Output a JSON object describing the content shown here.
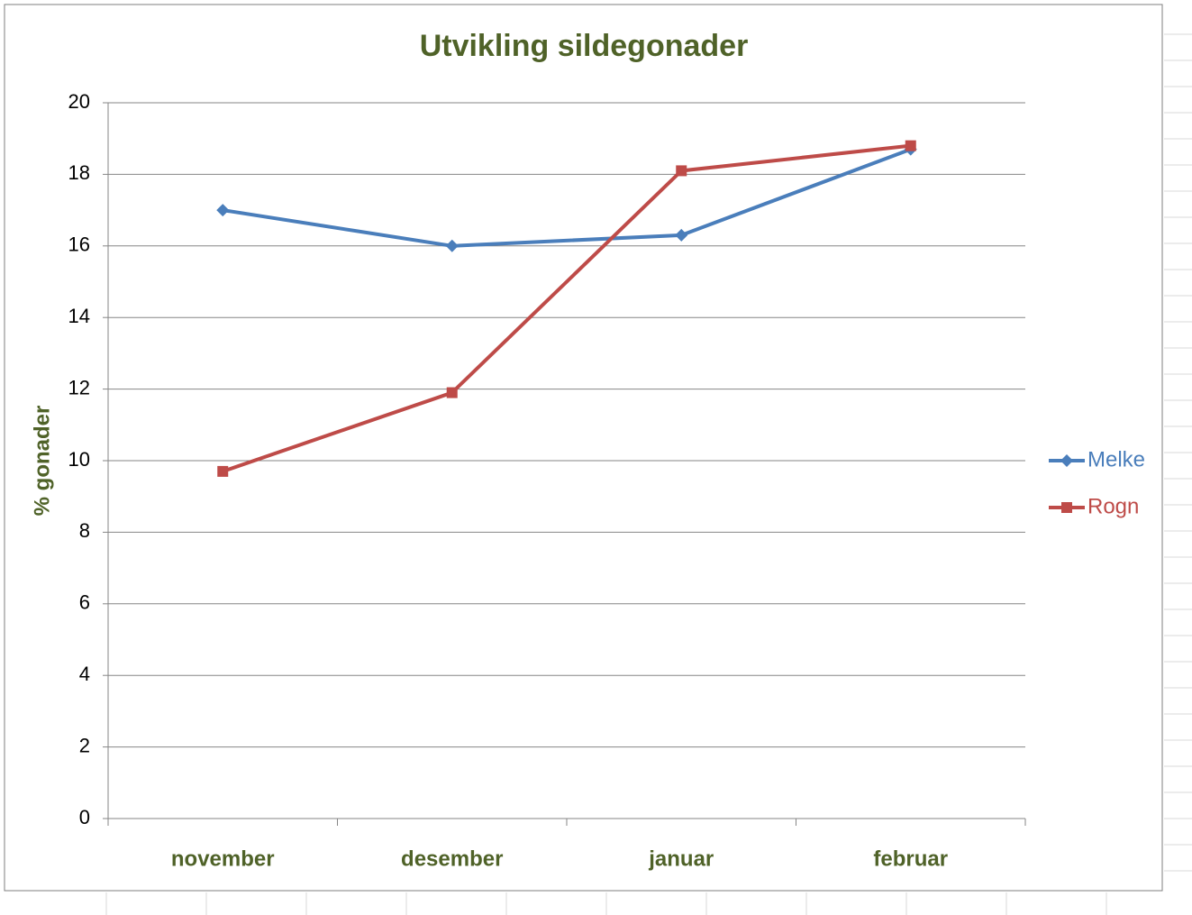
{
  "chart_data": {
    "type": "line",
    "title": "Utvikling sildegonader",
    "y_label": "% gonader",
    "categories": [
      "november",
      "desember",
      "januar",
      "februar"
    ],
    "series": [
      {
        "name": "Melke",
        "color": "#4a7ebb",
        "marker": "diamond",
        "values": [
          17.0,
          16.0,
          16.3,
          18.7
        ]
      },
      {
        "name": "Rogn",
        "color": "#be4b48",
        "marker": "square",
        "values": [
          9.7,
          11.9,
          18.1,
          18.8
        ]
      }
    ],
    "ylim": [
      0,
      20
    ],
    "yticks": [
      0,
      2,
      4,
      6,
      8,
      10,
      12,
      14,
      16,
      18,
      20
    ],
    "grid": true,
    "legend": "right"
  }
}
